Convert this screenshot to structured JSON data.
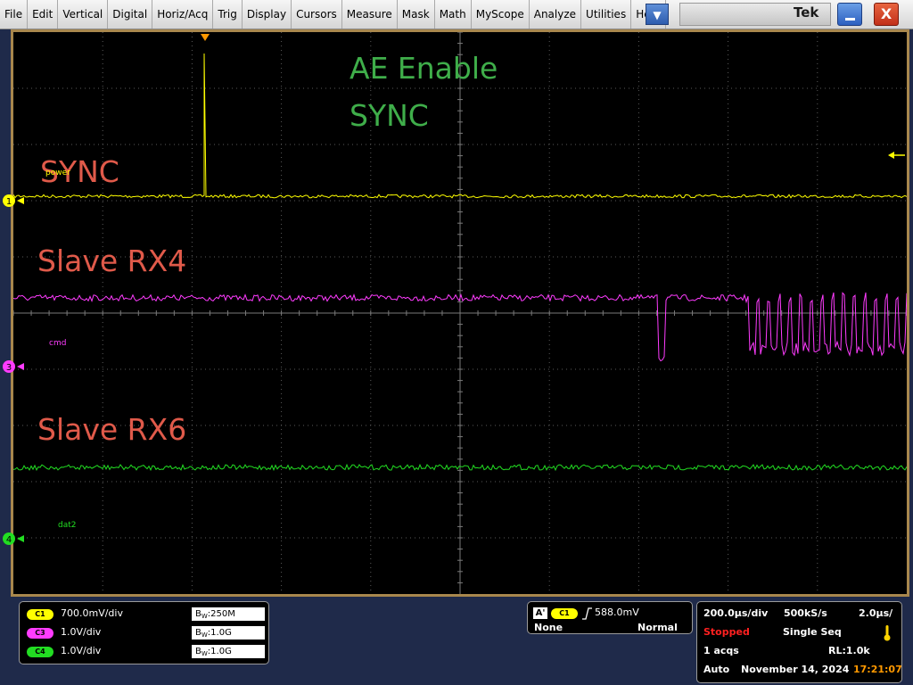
{
  "menu": {
    "items": [
      "File",
      "Edit",
      "Vertical",
      "Digital",
      "Horiz/Acq",
      "Trig",
      "Display",
      "Cursors",
      "Measure",
      "Mask",
      "Math",
      "MyScope",
      "Analyze",
      "Utilities",
      "Help"
    ],
    "dropdown_symbol": "▼"
  },
  "window": {
    "logo": "Tek",
    "close_symbol": "X"
  },
  "annotations": {
    "ae_enable": "AE Enable",
    "sync_green": "SYNC",
    "sync_red": "SYNC",
    "slave_rx4": "Slave RX4",
    "slave_rx6": "Slave RX6"
  },
  "channel_labels": {
    "ch1": "power",
    "ch3": "cmd",
    "ch4": "dat2"
  },
  "channel_markers": {
    "ch1": "1",
    "ch3": "3",
    "ch4": "4"
  },
  "vertical": [
    {
      "id": "C1",
      "scale": "700.0mV/div",
      "bw": "250M",
      "color": "#ffff00"
    },
    {
      "id": "C3",
      "scale": "1.0V/div",
      "bw": "1.0G",
      "color": "#ff3cff"
    },
    {
      "id": "C4",
      "scale": "1.0V/div",
      "bw": "1.0G",
      "color": "#22dd22"
    }
  ],
  "bw_letters": {
    "big": "B",
    "small": "W"
  },
  "trigger": {
    "label": "A'",
    "source": "C1",
    "level": "588.0mV",
    "coupling": "None",
    "mode": "Normal"
  },
  "timebase": {
    "time_div": "200.0µs/div",
    "sample_rate": "500kS/s",
    "resolution": "2.0µs/",
    "state": "Stopped",
    "seq_mode": "Single Seq",
    "acqs": "1 acqs",
    "record_length": "RL:1.0k",
    "run_mode": "Auto",
    "date": "November 14, 2024",
    "time": "17:21:07"
  },
  "colors": {
    "ch1": "#ffff00",
    "ch3": "#ff3cff",
    "ch4": "#22dd22",
    "annotation_red": "#e05a4a",
    "annotation_green": "#3fae4a",
    "stopped": "#ff2020",
    "time": "#ff9900"
  }
}
